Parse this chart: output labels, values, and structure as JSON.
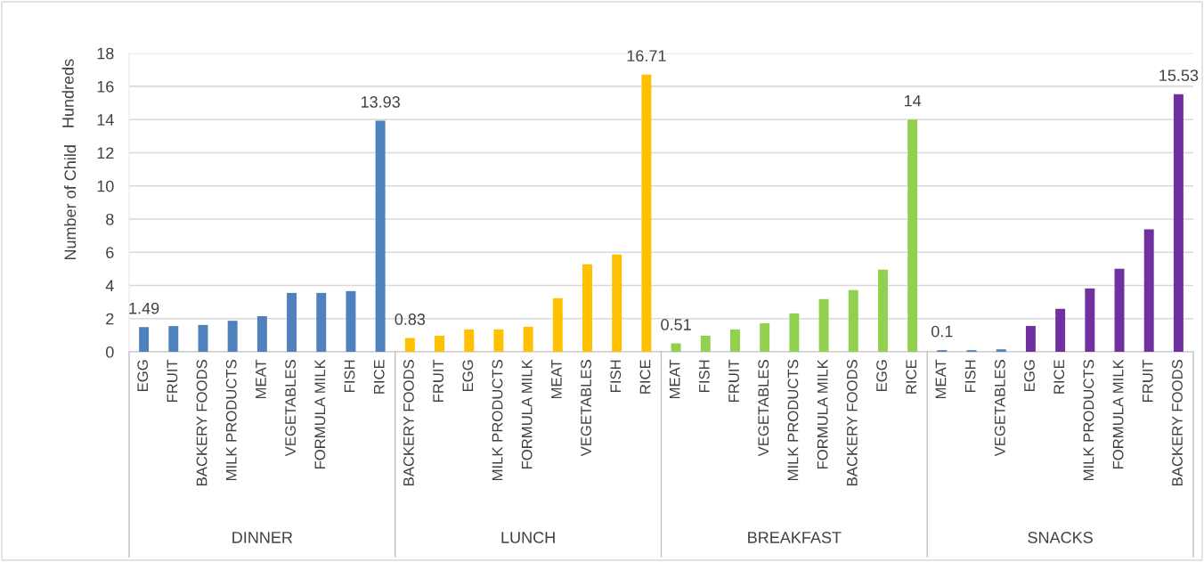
{
  "chart_data": {
    "type": "bar",
    "ylabel": "Number of Child",
    "annotations": [
      "Hundreds",
      "DINNER",
      "LUNCH",
      "BREAKFAST",
      "SNACKS"
    ],
    "categories": [
      "EGG",
      "FRUIT",
      "BACKERY FOODS",
      "MILK PRODUCTS",
      "MEAT",
      "VEGETABLES",
      "FORMULA MILK",
      "FISH",
      "RICE",
      "BACKERY FOODS",
      "FRUIT",
      "EGG",
      "MILK PRODUCTS",
      "FORMULA MILK",
      "MEAT",
      "VEGETABLES",
      "FISH",
      "RICE",
      "MEAT",
      "FISH",
      "FRUIT",
      "VEGETABLES",
      "MILK PRODUCTS",
      "FORMULA MILK",
      "BACKERY FOODS",
      "EGG",
      "RICE",
      "MEAT",
      "FISH",
      "VEGETABLES",
      "EGG",
      "RICE",
      "MILK PRODUCTS",
      "FORMULA MILK",
      "FRUIT",
      "BACKERY FOODS"
    ],
    "series": [
      {
        "color": "#4f81bd",
        "values": [
          1.49,
          1.55,
          1.62,
          1.87,
          2.15,
          3.55,
          3.55,
          3.66,
          13.93,
          null,
          null,
          null,
          null,
          null,
          null,
          null,
          null,
          null,
          null,
          null,
          null,
          null,
          null,
          null,
          null,
          null,
          null,
          null,
          null,
          null,
          null,
          null,
          null,
          null,
          null,
          null
        ],
        "value_labels": [
          "1.49",
          null,
          null,
          null,
          null,
          null,
          null,
          null,
          "13.93",
          null,
          null,
          null,
          null,
          null,
          null,
          null,
          null,
          null,
          null,
          null,
          null,
          null,
          null,
          null,
          null,
          null,
          null,
          null,
          null,
          null,
          null,
          null,
          null,
          null,
          null,
          null
        ]
      },
      {
        "color": "#ffc000",
        "values": [
          null,
          null,
          null,
          null,
          null,
          null,
          null,
          null,
          null,
          0.83,
          0.97,
          1.35,
          1.35,
          1.51,
          3.23,
          5.28,
          5.87,
          16.71,
          null,
          null,
          null,
          null,
          null,
          null,
          null,
          null,
          null,
          null,
          null,
          null,
          null,
          null,
          null,
          null,
          null,
          null
        ],
        "value_labels": [
          null,
          null,
          null,
          null,
          null,
          null,
          null,
          null,
          null,
          "0.83",
          null,
          null,
          null,
          null,
          null,
          null,
          null,
          "16.71",
          null,
          null,
          null,
          null,
          null,
          null,
          null,
          null,
          null,
          null,
          null,
          null,
          null,
          null,
          null,
          null,
          null,
          null
        ]
      },
      {
        "color": "#92d050",
        "values": [
          null,
          null,
          null,
          null,
          null,
          null,
          null,
          null,
          null,
          null,
          null,
          null,
          null,
          null,
          null,
          null,
          null,
          null,
          0.51,
          0.97,
          1.35,
          1.72,
          2.32,
          3.18,
          3.72,
          4.95,
          14,
          null,
          null,
          null,
          null,
          null,
          null,
          null,
          null,
          null
        ],
        "value_labels": [
          null,
          null,
          null,
          null,
          null,
          null,
          null,
          null,
          null,
          null,
          null,
          null,
          null,
          null,
          null,
          null,
          null,
          null,
          "0.51",
          null,
          null,
          null,
          null,
          null,
          null,
          null,
          "14",
          null,
          null,
          null,
          null,
          null,
          null,
          null,
          null,
          null
        ]
      },
      {
        "colors": [
          null,
          null,
          null,
          null,
          null,
          null,
          null,
          null,
          null,
          null,
          null,
          null,
          null,
          null,
          null,
          null,
          null,
          null,
          null,
          null,
          null,
          null,
          null,
          null,
          null,
          null,
          null,
          "#4f81bd",
          "#4f81bd",
          "#4f81bd",
          "#7030a0",
          "#7030a0",
          "#7030a0",
          "#7030a0",
          "#7030a0",
          "#7030a0"
        ],
        "values": [
          null,
          null,
          null,
          null,
          null,
          null,
          null,
          null,
          null,
          null,
          null,
          null,
          null,
          null,
          null,
          null,
          null,
          null,
          null,
          null,
          null,
          null,
          null,
          null,
          null,
          null,
          null,
          0.1,
          0.1,
          0.15,
          1.56,
          2.59,
          3.82,
          5.01,
          7.38,
          15.53
        ],
        "value_labels": [
          null,
          null,
          null,
          null,
          null,
          null,
          null,
          null,
          null,
          null,
          null,
          null,
          null,
          null,
          null,
          null,
          null,
          null,
          null,
          null,
          null,
          null,
          null,
          null,
          null,
          null,
          null,
          "0.1",
          null,
          null,
          null,
          null,
          null,
          null,
          null,
          "15.53"
        ]
      }
    ],
    "ylim": [
      0,
      18
    ],
    "yticks": [
      0,
      2,
      4,
      6,
      8,
      10,
      12,
      14,
      16,
      18
    ],
    "grid": "y",
    "legend": false
  }
}
